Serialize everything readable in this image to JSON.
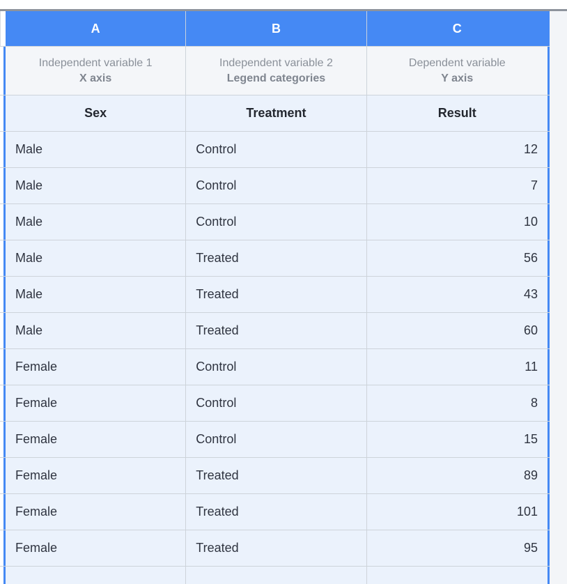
{
  "spreadsheet": {
    "column_letters": [
      "A",
      "B",
      "C"
    ],
    "role_headers": [
      {
        "line1": "Independent variable 1",
        "line2": "X axis"
      },
      {
        "line1": "Independent variable 2",
        "line2": "Legend categories"
      },
      {
        "line1": "Dependent variable",
        "line2": "Y axis"
      }
    ],
    "variable_headers": [
      "Sex",
      "Treatment",
      "Result"
    ],
    "rows": [
      {
        "sex": "Male",
        "treatment": "Control",
        "result": "12"
      },
      {
        "sex": "Male",
        "treatment": "Control",
        "result": "7"
      },
      {
        "sex": "Male",
        "treatment": "Control",
        "result": "10"
      },
      {
        "sex": "Male",
        "treatment": "Treated",
        "result": "56"
      },
      {
        "sex": "Male",
        "treatment": "Treated",
        "result": "43"
      },
      {
        "sex": "Male",
        "treatment": "Treated",
        "result": "60"
      },
      {
        "sex": "Female",
        "treatment": "Control",
        "result": "11"
      },
      {
        "sex": "Female",
        "treatment": "Control",
        "result": "8"
      },
      {
        "sex": "Female",
        "treatment": "Control",
        "result": "15"
      },
      {
        "sex": "Female",
        "treatment": "Treated",
        "result": "89"
      },
      {
        "sex": "Female",
        "treatment": "Treated",
        "result": "101"
      },
      {
        "sex": "Female",
        "treatment": "Treated",
        "result": "95"
      }
    ],
    "colors": {
      "header_blue": "#4589f4",
      "selection_border_blue": "#4589f4",
      "cell_bg": "#ebf2fc",
      "subheader_bg": "#f4f6f9",
      "grid_line": "#cdd3da",
      "top_rule": "#8e939c",
      "right_gutter_bg": "#f3f5f8"
    }
  }
}
